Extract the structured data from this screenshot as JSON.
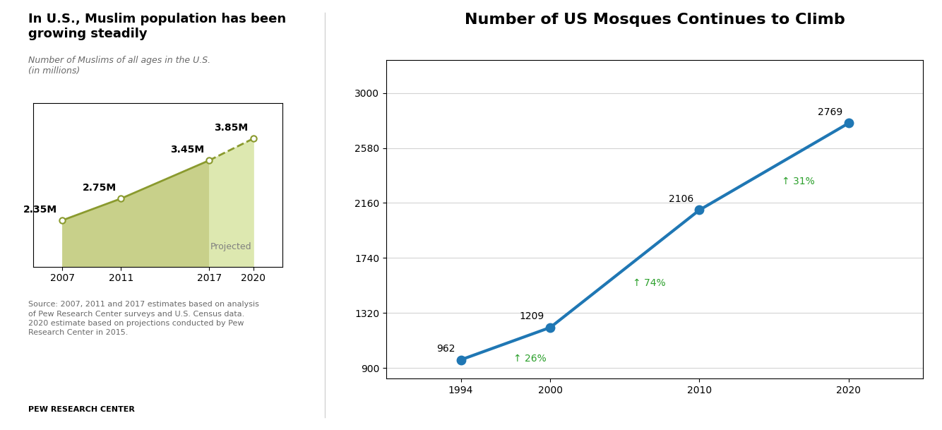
{
  "chart_data": [
    {
      "type": "area",
      "title": "In U.S., Muslim population has been\ngrowing steadily",
      "subtitle": "Number of Muslims of all ages in the U.S.\n(in millions)",
      "source": "Source: 2007, 2011 and 2017 estimates based on analysis\nof Pew Research Center surveys and U.S. Census data.\n2020 estimate based on projections conducted by Pew\nResearch Center in 2015.",
      "brand": "PEW RESEARCH CENTER",
      "x": [
        2007,
        2011,
        2017,
        2020
      ],
      "values": [
        2.35,
        2.75,
        3.45,
        3.85
      ],
      "value_labels": [
        "2.35M",
        "2.75M",
        "3.45M",
        "3.85M"
      ],
      "color": "#8a9a2e",
      "marker": "o",
      "series": [
        {
          "color": "#c8d08a",
          "line_style": "solid",
          "values": [
            2.35,
            2.75,
            3.45,
            null
          ]
        },
        {
          "color": "#dde8b0",
          "line_style": "dashed",
          "values": [
            null,
            null,
            3.45,
            3.85
          ]
        }
      ],
      "annotations": [
        "Projected"
      ],
      "xlim": [
        2005,
        2022
      ],
      "ylim": [
        1.5,
        4.5
      ],
      "xticks": [
        2007,
        2011,
        2017,
        2020
      ],
      "tick_labels": "x"
    },
    {
      "type": "line",
      "title": "Number of US Mosques Continues to Climb",
      "x": [
        1994,
        2000,
        2010,
        2020
      ],
      "values": [
        962,
        1209,
        2106,
        2769
      ],
      "marker": "o",
      "data_labels": true,
      "annotations": [
        "↑ 26%",
        "↑ 74%",
        "↑ 31%"
      ],
      "xlim": [
        1989,
        2025
      ],
      "ylim": [
        820,
        3250
      ],
      "xticks": [
        1994,
        2000,
        2010,
        2020
      ],
      "yticks": [
        900,
        1320,
        1740,
        2160,
        2580,
        3000
      ],
      "grid": true
    }
  ]
}
